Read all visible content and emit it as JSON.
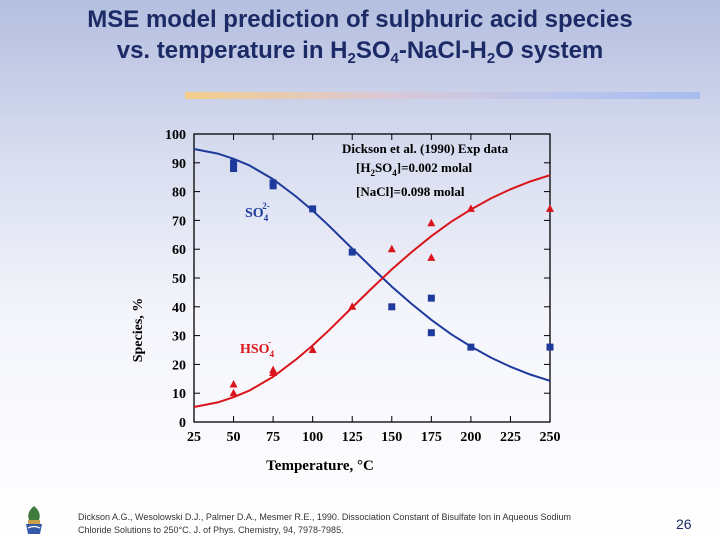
{
  "slide": {
    "title_line1": "MSE model prediction of sulphuric acid species",
    "title_line2_parts": [
      "vs. temperature in H",
      "2",
      "SO",
      "4",
      "-NaCl-H",
      "2",
      "O system"
    ],
    "reference_line1": "Dickson A.G., Wesolowski D.J., Palmer D.A., Mesmer R.E., 1990. Dissociation Constant of Bisulfate Ion in Aqueous Sodium",
    "reference_line2": "Chloride Solutions to 250°C. J. of Phys. Chemistry, 94, 7978-7985.",
    "page_number": "26",
    "accent_title_color": "#1c2a66"
  },
  "chart_data": {
    "type": "scatter",
    "xlabel": "Temperature, °C",
    "ylabel": "Species, %",
    "xlim": [
      25,
      250
    ],
    "ylim": [
      0,
      100
    ],
    "xticks": [
      25,
      50,
      75,
      100,
      125,
      150,
      175,
      200,
      225,
      250
    ],
    "yticks": [
      0,
      10,
      20,
      30,
      40,
      50,
      60,
      70,
      80,
      90,
      100
    ],
    "legend": {
      "line1": "Dickson et al. (1990) Exp data",
      "line2_parts": [
        "[H",
        "2",
        "SO",
        "4",
        "]=0.002 molal"
      ],
      "line3": "[NaCl]=0.098 molal",
      "position": "top-right"
    },
    "series": [
      {
        "name": "SO4 2-",
        "label_base": "SO",
        "label_sub": "4",
        "label_sup": "2-",
        "color": "#1d3a9c",
        "marker": "square",
        "points": [
          [
            50,
            88
          ],
          [
            50,
            90
          ],
          [
            75,
            82
          ],
          [
            75,
            83
          ],
          [
            100,
            74
          ],
          [
            125,
            59
          ],
          [
            150,
            40
          ],
          [
            175,
            43
          ],
          [
            175,
            31
          ],
          [
            200,
            26
          ],
          [
            250,
            26
          ]
        ],
        "model": [
          [
            25,
            94.8
          ],
          [
            40,
            93.2
          ],
          [
            50,
            91.4
          ],
          [
            60,
            89.1
          ],
          [
            75,
            84.3
          ],
          [
            90,
            78.1
          ],
          [
            100,
            73.4
          ],
          [
            110,
            68.3
          ],
          [
            125,
            60.2
          ],
          [
            137.5,
            53.5
          ],
          [
            150,
            47.0
          ],
          [
            162.5,
            41.0
          ],
          [
            175,
            35.5
          ],
          [
            187.5,
            30.5
          ],
          [
            200,
            26.2
          ],
          [
            212.5,
            22.4
          ],
          [
            225,
            19.2
          ],
          [
            237.5,
            16.5
          ],
          [
            250,
            14.3
          ]
        ]
      },
      {
        "name": "HSO4 -",
        "label_base": "HSO",
        "label_sub": "4",
        "label_sup": "-",
        "color": "#d9151b",
        "marker": "triangle",
        "points": [
          [
            50,
            10
          ],
          [
            50,
            13
          ],
          [
            75,
            17
          ],
          [
            75,
            18
          ],
          [
            100,
            25
          ],
          [
            125,
            40
          ],
          [
            150,
            60
          ],
          [
            175,
            57
          ],
          [
            175,
            69
          ],
          [
            200,
            74
          ],
          [
            250,
            74
          ]
        ],
        "model": [
          [
            25,
            5.2
          ],
          [
            40,
            6.8
          ],
          [
            50,
            8.6
          ],
          [
            60,
            10.9
          ],
          [
            75,
            15.7
          ],
          [
            90,
            21.9
          ],
          [
            100,
            26.6
          ],
          [
            110,
            31.7
          ],
          [
            125,
            39.8
          ],
          [
            137.5,
            46.5
          ],
          [
            150,
            53.0
          ],
          [
            162.5,
            59.0
          ],
          [
            175,
            64.5
          ],
          [
            187.5,
            69.5
          ],
          [
            200,
            73.8
          ],
          [
            212.5,
            77.6
          ],
          [
            225,
            80.8
          ],
          [
            237.5,
            83.5
          ],
          [
            250,
            85.7
          ]
        ]
      }
    ]
  }
}
